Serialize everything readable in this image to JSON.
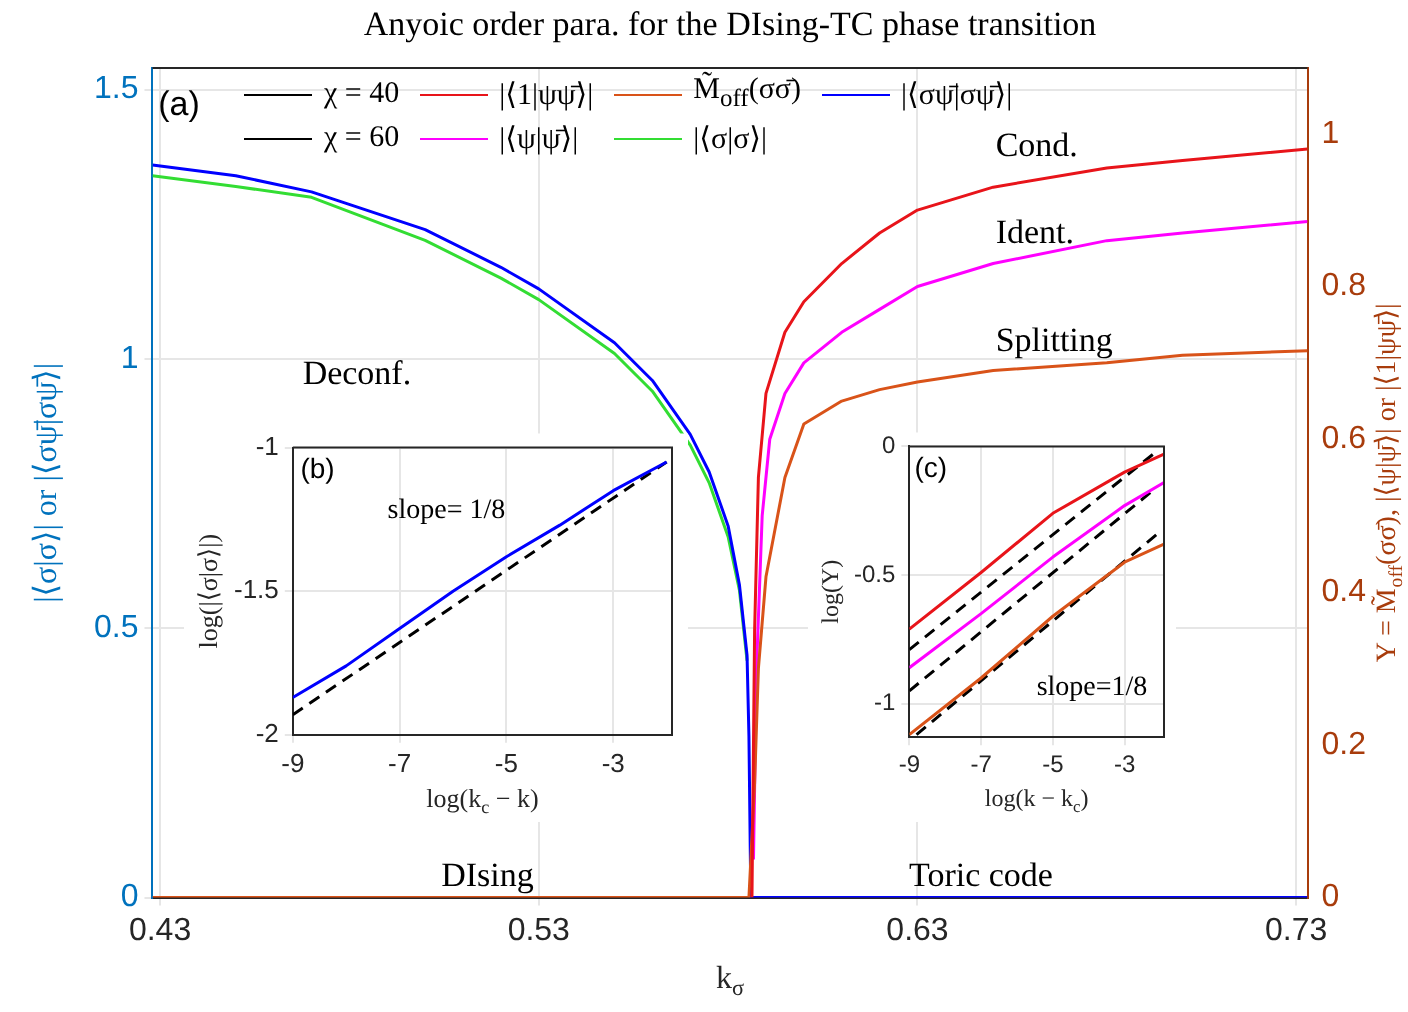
{
  "chart_data": [
    {
      "type": "line",
      "title": "Anyoic order para. for the DIsing-TC phase transition",
      "xlabel": "k$_{σ}$",
      "ylabel": "|⟨σ|σ⟩| or |⟨σψ̄|σψ̄⟩|",
      "y2label": "Y = M̃$_{off}$(σσ̄), |⟨ψ|ψ̄⟩| or |⟨1|ψψ̄⟩|",
      "xlim": [
        0.428,
        0.733
      ],
      "xticks": [
        0.43,
        0.53,
        0.63,
        0.73
      ],
      "ylim": [
        0,
        1.54
      ],
      "yticks": [
        0,
        0.5,
        1,
        1.5
      ],
      "y2lim": [
        0,
        1.086
      ],
      "y2ticks": [
        0,
        0.2,
        0.4,
        0.6,
        0.8,
        1
      ],
      "grid": true,
      "legend": "top",
      "annotations": [
        "(a)",
        "Deconf.",
        "Cond.",
        "Ident.",
        "Splitting",
        "DIsing",
        "Toric code"
      ],
      "series": [
        {
          "name": "χ = 40",
          "color": "#000000"
        },
        {
          "name": "|⟨1|ψψ̄⟩|",
          "color": "#e8141a",
          "axis": "y2",
          "x": [
            0.5863,
            0.587,
            0.588,
            0.59,
            0.595,
            0.6,
            0.61,
            0.62,
            0.63,
            0.65,
            0.68,
            0.7,
            0.733
          ],
          "values": [
            0,
            0.35,
            0.55,
            0.66,
            0.74,
            0.78,
            0.83,
            0.87,
            0.9,
            0.93,
            0.955,
            0.965,
            0.98
          ]
        },
        {
          "name": "M̃$_{off}$(σσ̄)",
          "color": "#d95319",
          "axis": "y2",
          "x": [
            0.428,
            0.5855,
            0.587,
            0.588,
            0.59,
            0.595,
            0.6,
            0.61,
            0.62,
            0.63,
            0.65,
            0.68,
            0.7,
            0.733
          ],
          "values": [
            0,
            0,
            0.15,
            0.3,
            0.42,
            0.55,
            0.62,
            0.65,
            0.665,
            0.675,
            0.69,
            0.7,
            0.71,
            0.716
          ]
        },
        {
          "name": "|⟨σψ̄|σψ̄⟩|",
          "color": "#0000ff",
          "x": [
            0.428,
            0.45,
            0.47,
            0.5,
            0.52,
            0.53,
            0.55,
            0.56,
            0.57,
            0.575,
            0.58,
            0.583,
            0.585,
            0.5855,
            0.586,
            0.733
          ],
          "values": [
            1.36,
            1.34,
            1.31,
            1.24,
            1.17,
            1.13,
            1.03,
            0.96,
            0.86,
            0.79,
            0.69,
            0.58,
            0.45,
            0.3,
            0,
            0
          ]
        },
        {
          "name": "χ = 60",
          "color": "#000000"
        },
        {
          "name": "|⟨ψ|ψ̄⟩|",
          "color": "#ff00ff",
          "axis": "y2",
          "x": [
            0.5867,
            0.5875,
            0.589,
            0.591,
            0.595,
            0.6,
            0.61,
            0.62,
            0.63,
            0.65,
            0.68,
            0.7,
            0.733
          ],
          "values": [
            0.05,
            0.3,
            0.5,
            0.6,
            0.66,
            0.7,
            0.74,
            0.77,
            0.8,
            0.83,
            0.86,
            0.87,
            0.885
          ]
        },
        {
          "name": "|⟨σ|σ⟩|",
          "color": "#33dd33",
          "x": [
            0.428,
            0.45,
            0.47,
            0.5,
            0.52,
            0.53,
            0.55,
            0.56,
            0.57,
            0.575,
            0.58,
            0.583,
            0.585
          ],
          "values": [
            1.34,
            1.32,
            1.3,
            1.22,
            1.15,
            1.11,
            1.01,
            0.94,
            0.84,
            0.77,
            0.67,
            0.57,
            0.44
          ]
        }
      ]
    },
    {
      "type": "line",
      "xlabel": "log(k$_{c}$ − k)",
      "ylabel": "log(|⟨σ|σ⟩|)",
      "xlim": [
        -9,
        -1.9
      ],
      "xticks": [
        -9,
        -7,
        -5,
        -3
      ],
      "ylim": [
        -2,
        -1
      ],
      "yticks": [
        -2,
        -1.5,
        -1
      ],
      "grid": true,
      "annotations": [
        "(b)",
        "slope= 1/8"
      ],
      "series": [
        {
          "color": "#0000ff",
          "x": [
            -9,
            -8,
            -7,
            -6,
            -5,
            -4,
            -3,
            -2
          ],
          "values": [
            -1.87,
            -1.76,
            -1.63,
            -1.5,
            -1.38,
            -1.27,
            -1.15,
            -1.05
          ]
        },
        {
          "type": "line",
          "color": "#000000",
          "line_style": "dashed",
          "x": [
            -9,
            -2
          ],
          "values": [
            -1.93,
            -1.05
          ]
        }
      ]
    },
    {
      "type": "line",
      "xlabel": "log(k − k$_{c}$)",
      "ylabel": "log(Y)",
      "xlim": [
        -9,
        -1.9
      ],
      "xticks": [
        -9,
        -7,
        -5,
        -3
      ],
      "ylim": [
        -1.13,
        0
      ],
      "yticks": [
        -1,
        -0.5,
        0
      ],
      "grid": true,
      "annotations": [
        "(c)",
        "slope=1/8"
      ],
      "series": [
        {
          "color": "#e8141a",
          "x": [
            -9,
            -7,
            -5,
            -3,
            -1.9
          ],
          "values": [
            -0.71,
            -0.49,
            -0.26,
            -0.1,
            -0.03
          ]
        },
        {
          "color": "#ff00ff",
          "x": [
            -9,
            -7,
            -5,
            -3,
            -1.9
          ],
          "values": [
            -0.86,
            -0.65,
            -0.43,
            -0.23,
            -0.14
          ]
        },
        {
          "color": "#d95319",
          "x": [
            -9,
            -7,
            -5,
            -3,
            -1.9
          ],
          "values": [
            -1.12,
            -0.9,
            -0.66,
            -0.45,
            -0.38
          ]
        },
        {
          "type": "line",
          "color": "#000000",
          "line_style": "dashed",
          "x": [
            -9,
            -2.2
          ],
          "values": [
            -0.79,
            -0.03
          ]
        },
        {
          "type": "line",
          "color": "#000000",
          "line_style": "dashed",
          "x": [
            -9,
            -2.2
          ],
          "values": [
            -0.95,
            -0.17
          ]
        },
        {
          "type": "line",
          "color": "#000000",
          "line_style": "dashed",
          "x": [
            -8.8,
            -2
          ],
          "values": [
            -1.12,
            -0.33
          ]
        }
      ]
    }
  ]
}
